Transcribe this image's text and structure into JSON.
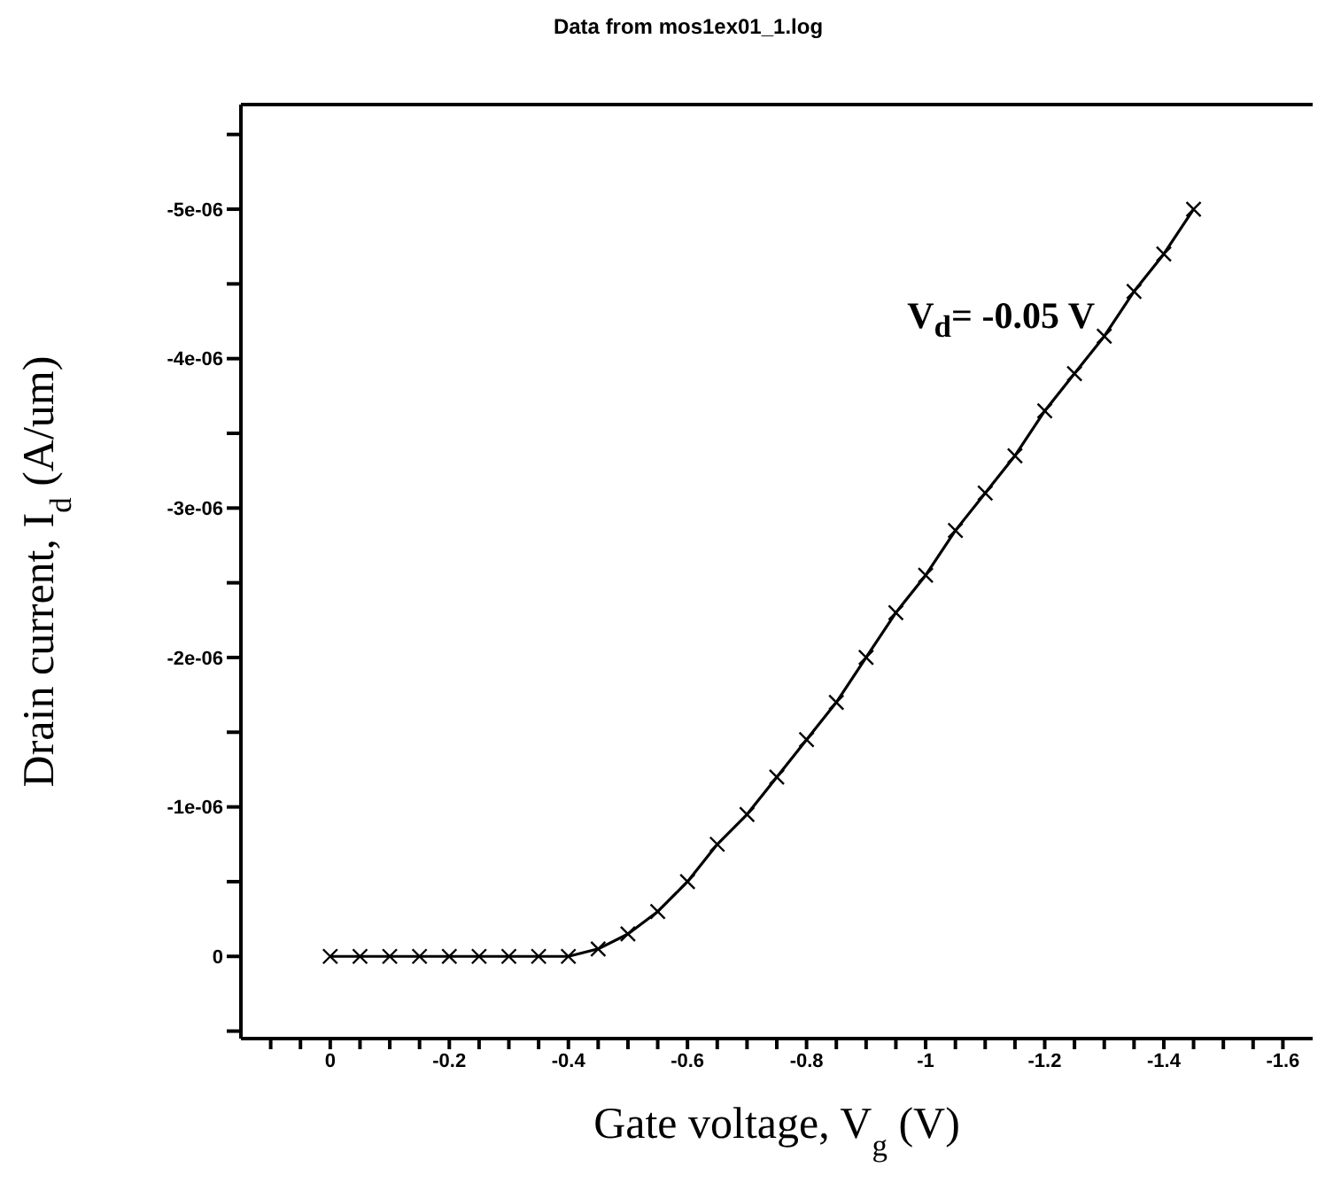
{
  "chart_data": {
    "type": "line",
    "subtitle": "Data from mos1ex01_1.log",
    "xlabel": "Gate voltage, V$_{g}$ (V)",
    "ylabel": "Drain current, I$_{d}$ (A/um)",
    "x": [
      0,
      -0.05,
      -0.1,
      -0.15,
      -0.2,
      -0.25,
      -0.3,
      -0.35,
      -0.4,
      -0.45,
      -0.5,
      -0.55,
      -0.6,
      -0.65,
      -0.7,
      -0.75,
      -0.8,
      -0.85,
      -0.9,
      -0.95,
      -1,
      -1.05,
      -1.1,
      -1.15,
      -1.2,
      -1.25,
      -1.3,
      -1.35,
      -1.4,
      -1.45
    ],
    "series": [
      {
        "color": "#000000",
        "values": [
          0,
          0,
          0,
          0,
          0,
          0,
          0,
          0,
          0,
          -5e-08,
          -1.5e-07,
          -3e-07,
          -5e-07,
          -7.5e-07,
          -9.5e-07,
          -1.2e-06,
          -1.45e-06,
          -1.7e-06,
          -2e-06,
          -2.3e-06,
          -2.55e-06,
          -2.85e-06,
          -3.1e-06,
          -3.35e-06,
          -3.65e-06,
          -3.9e-06,
          -4.15e-06,
          -4.45e-06,
          -4.7e-06,
          -5e-06
        ]
      }
    ],
    "xlim": [
      0.15,
      -1.65
    ],
    "xticks": [
      {
        "value": 0.1,
        "label": null
      },
      {
        "value": 0.05,
        "label": null
      },
      0,
      {
        "value": -0.05,
        "label": null
      },
      {
        "value": -0.1,
        "label": null
      },
      {
        "value": -0.15,
        "label": null
      },
      -0.2,
      {
        "value": -0.25,
        "label": null
      },
      {
        "value": -0.3,
        "label": null
      },
      {
        "value": -0.35,
        "label": null
      },
      -0.4,
      {
        "value": -0.45,
        "label": null
      },
      {
        "value": -0.5,
        "label": null
      },
      {
        "value": -0.55,
        "label": null
      },
      -0.6,
      {
        "value": -0.65,
        "label": null
      },
      {
        "value": -0.7,
        "label": null
      },
      {
        "value": -0.75,
        "label": null
      },
      -0.8,
      {
        "value": -0.85,
        "label": null
      },
      {
        "value": -0.9,
        "label": null
      },
      {
        "value": -0.95,
        "label": null
      },
      -1,
      {
        "value": -1.05,
        "label": null
      },
      {
        "value": -1.1,
        "label": null
      },
      {
        "value": -1.15,
        "label": null
      },
      -1.2,
      {
        "value": -1.25,
        "label": null
      },
      {
        "value": -1.3,
        "label": null
      },
      {
        "value": -1.35,
        "label": null
      },
      -1.4,
      {
        "value": -1.45,
        "label": null
      },
      {
        "value": -1.5,
        "label": null
      },
      {
        "value": -1.55,
        "label": null
      },
      -1.6
    ],
    "ylim": [
      5.5e-07,
      -5.7e-06
    ],
    "yticks": [
      {
        "value": 5e-07,
        "label": null
      },
      0,
      {
        "value": -5e-07,
        "label": null
      },
      {
        "value": -1e-06,
        "label": "-1e-06"
      },
      {
        "value": -1.5e-06,
        "label": null
      },
      {
        "value": -2e-06,
        "label": "-2e-06"
      },
      {
        "value": -2.5e-06,
        "label": null
      },
      {
        "value": -3e-06,
        "label": "-3e-06"
      },
      {
        "value": -3.5e-06,
        "label": null
      },
      {
        "value": -4e-06,
        "label": "-4e-06"
      },
      {
        "value": -4.5e-06,
        "label": null
      },
      {
        "value": -5e-06,
        "label": "-5e-06"
      },
      {
        "value": -5.5e-06,
        "label": null
      }
    ],
    "marker": "cross",
    "line_style": "solid",
    "grid": false,
    "legend": false,
    "annotations": [
      "V$_{d}$= -0.05 V"
    ]
  }
}
